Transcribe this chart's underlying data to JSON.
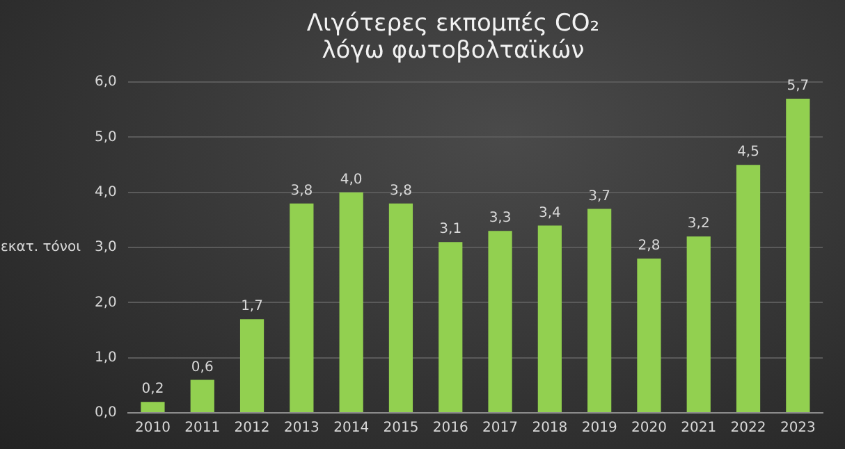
{
  "chart_data": {
    "type": "bar",
    "title": "Λιγότερες εκπομπές CO₂\nλόγω φωτοβολταϊκών",
    "ylabel": "εκατ. τόνοι",
    "categories": [
      "2010",
      "2011",
      "2012",
      "2013",
      "2014",
      "2015",
      "2016",
      "2017",
      "2018",
      "2019",
      "2020",
      "2021",
      "2022",
      "2023"
    ],
    "values": [
      0.2,
      0.6,
      1.7,
      3.8,
      4.0,
      3.8,
      3.1,
      3.3,
      3.4,
      3.7,
      2.8,
      3.2,
      4.5,
      5.7
    ],
    "value_labels": [
      "0,2",
      "0,6",
      "1,7",
      "3,8",
      "4,0",
      "3,8",
      "3,1",
      "3,3",
      "3,4",
      "3,7",
      "2,8",
      "3,2",
      "4,5",
      "5,7"
    ],
    "color": "#92d050",
    "ylim": [
      0,
      6
    ],
    "yticks": [
      {
        "value": 0,
        "label": "0,0"
      },
      {
        "value": 1,
        "label": "1,0"
      },
      {
        "value": 2,
        "label": "2,0"
      },
      {
        "value": 3,
        "label": "3,0"
      },
      {
        "value": 4,
        "label": "4,0"
      },
      {
        "value": 5,
        "label": "5,0"
      },
      {
        "value": 6,
        "label": "6,0"
      }
    ],
    "grid": "y",
    "legend": false
  }
}
